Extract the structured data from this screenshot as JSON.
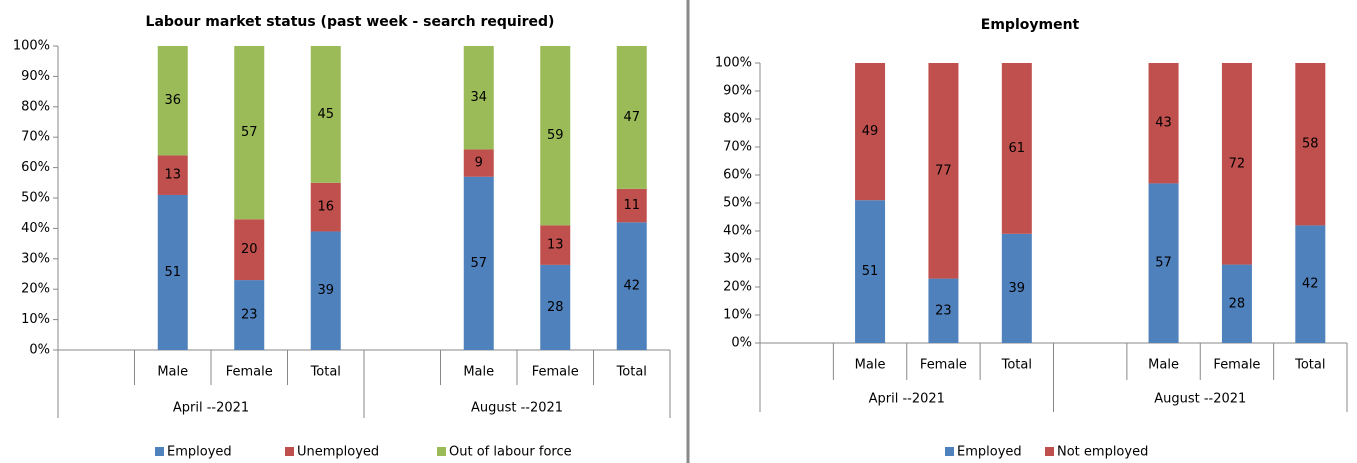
{
  "chart_data": [
    {
      "type": "bar",
      "stacked": true,
      "title": "Labour market status (past week - search required)",
      "groups": [
        {
          "label": "April --2021",
          "categories": [
            null,
            "Male",
            "Female",
            "Total"
          ]
        },
        {
          "label": "August --2021",
          "categories": [
            null,
            "Male",
            "Female",
            "Total"
          ]
        }
      ],
      "series": [
        {
          "name": "Employed",
          "color": "#4f81bd",
          "values": [
            null,
            51,
            23,
            39,
            null,
            57,
            28,
            42
          ]
        },
        {
          "name": "Unemployed",
          "color": "#c0504d",
          "values": [
            null,
            13,
            20,
            16,
            null,
            9,
            13,
            11
          ]
        },
        {
          "name": "Out of labour force",
          "color": "#9bbb59",
          "values": [
            null,
            36,
            57,
            45,
            null,
            34,
            59,
            47
          ]
        }
      ],
      "ylim": [
        0,
        100
      ],
      "yticks": [
        {
          "value": 0,
          "label": "0%"
        },
        {
          "value": 10,
          "label": "10%"
        },
        {
          "value": 20,
          "label": "20%"
        },
        {
          "value": 30,
          "label": "30%"
        },
        {
          "value": 40,
          "label": "40%"
        },
        {
          "value": 50,
          "label": "50%"
        },
        {
          "value": 60,
          "label": "60%"
        },
        {
          "value": 70,
          "label": "70%"
        },
        {
          "value": 80,
          "label": "80%"
        },
        {
          "value": 90,
          "label": "90%"
        },
        {
          "value": 100,
          "label": "100%"
        }
      ],
      "legend": "bottom"
    },
    {
      "type": "bar",
      "stacked": true,
      "title": "Employment",
      "groups": [
        {
          "label": "April --2021",
          "categories": [
            null,
            "Male",
            "Female",
            "Total"
          ]
        },
        {
          "label": "August --2021",
          "categories": [
            null,
            "Male",
            "Female",
            "Total"
          ]
        }
      ],
      "series": [
        {
          "name": "Employed",
          "color": "#4f81bd",
          "values": [
            null,
            51,
            23,
            39,
            null,
            57,
            28,
            42
          ]
        },
        {
          "name": "Not employed",
          "color": "#c0504d",
          "values": [
            null,
            49,
            77,
            61,
            null,
            43,
            72,
            58
          ]
        }
      ],
      "ylim": [
        0,
        100
      ],
      "yticks": [
        {
          "value": 0,
          "label": "0%"
        },
        {
          "value": 10,
          "label": "10%"
        },
        {
          "value": 20,
          "label": "20%"
        },
        {
          "value": 30,
          "label": "30%"
        },
        {
          "value": 40,
          "label": "40%"
        },
        {
          "value": 50,
          "label": "50%"
        },
        {
          "value": 60,
          "label": "60%"
        },
        {
          "value": 70,
          "label": "70%"
        },
        {
          "value": 80,
          "label": "80%"
        },
        {
          "value": 90,
          "label": "90%"
        },
        {
          "value": 100,
          "label": "100%"
        }
      ],
      "legend": "bottom"
    }
  ]
}
